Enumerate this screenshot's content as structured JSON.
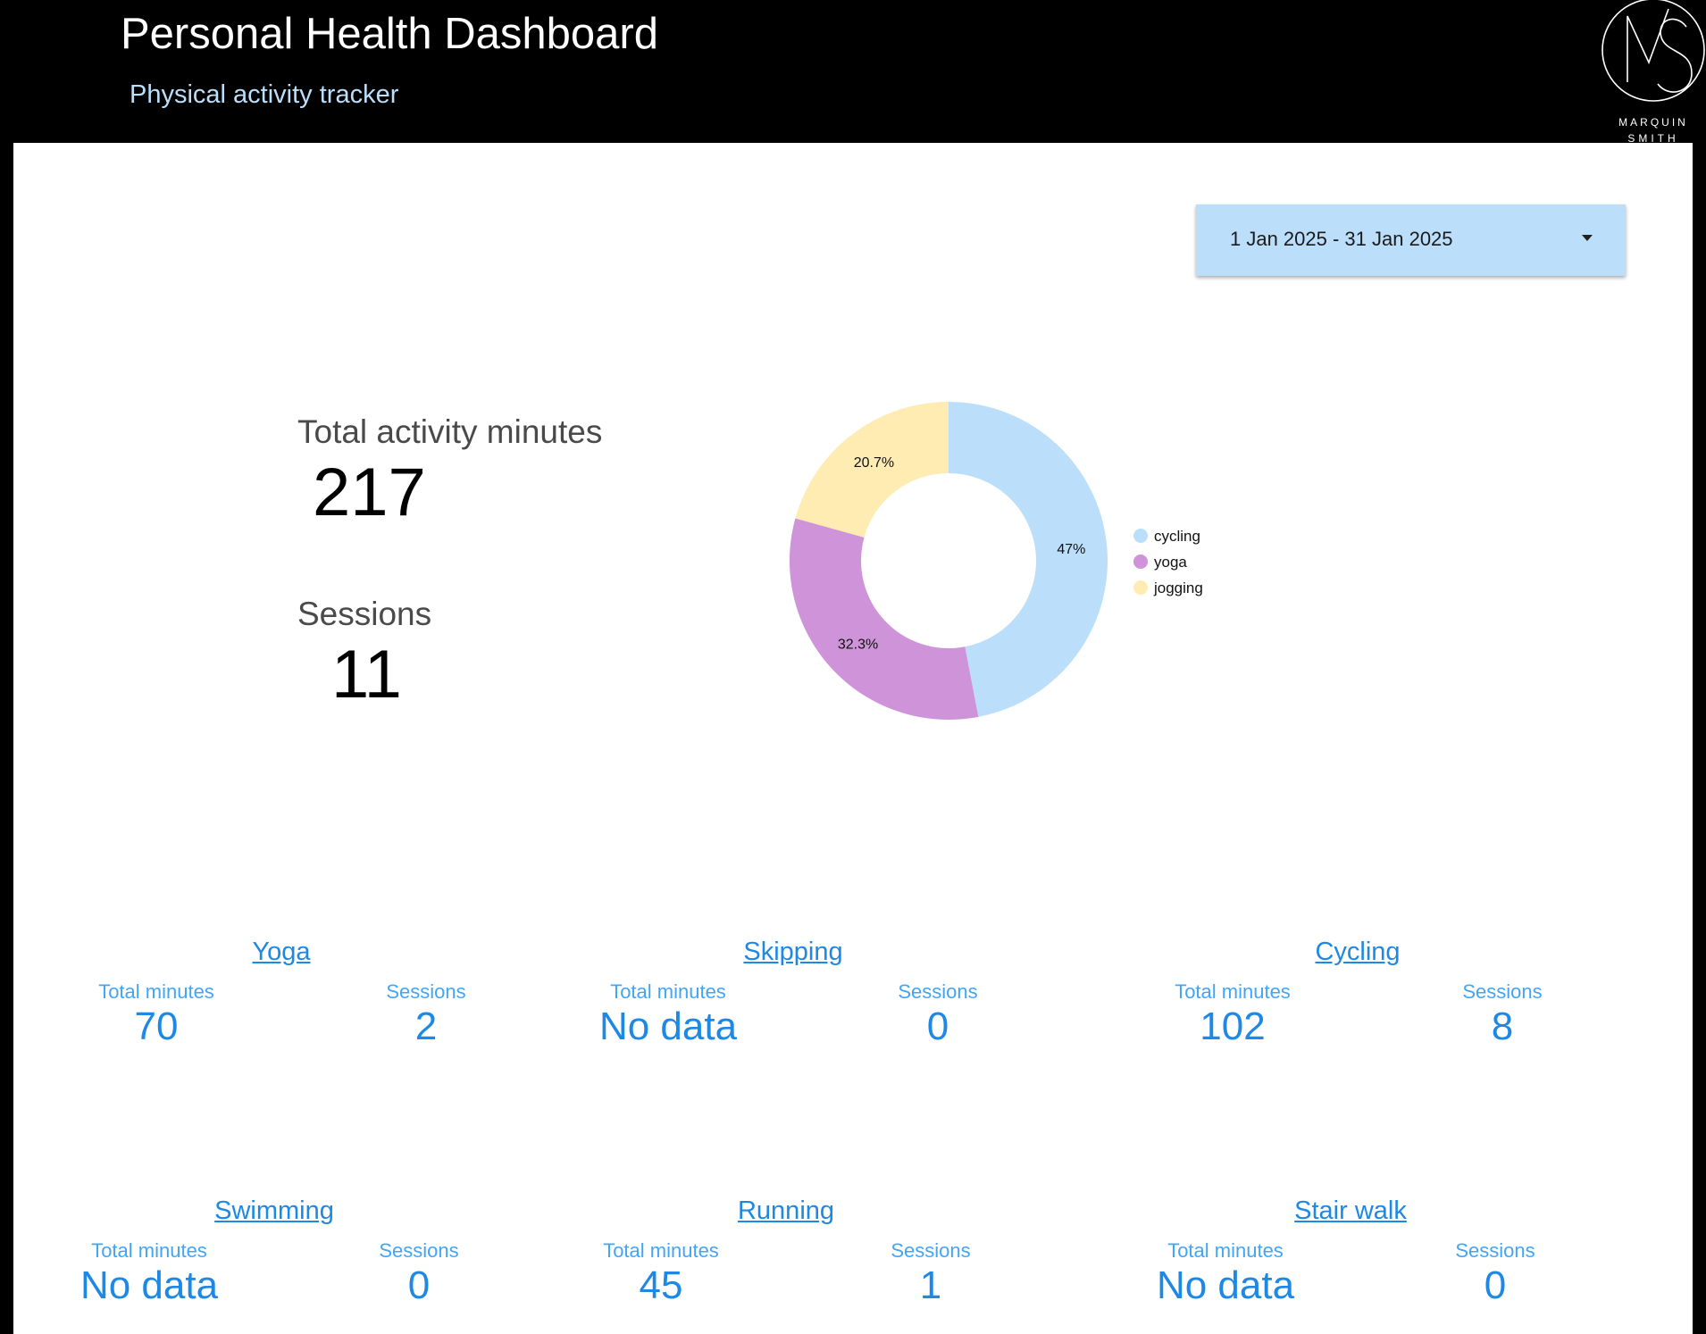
{
  "header": {
    "title": "Personal Health Dashboard",
    "subtitle": "Physical activity tracker",
    "logo": {
      "monogram": "MS",
      "line1": "MARQUIN",
      "line2": "SMITH"
    }
  },
  "date_filter": {
    "label": "1 Jan 2025 - 31 Jan 2025",
    "icon": "dropdown-arrow-icon"
  },
  "kpis": {
    "total_minutes_label": "Total activity minutes",
    "total_minutes_value": "217",
    "sessions_label": "Sessions",
    "sessions_value": "11"
  },
  "chart_data": {
    "type": "pie",
    "donut": true,
    "legend_position": "right",
    "slices": [
      {
        "label": "cycling",
        "percent": 47,
        "display": "47%",
        "color": "#bbdefb"
      },
      {
        "label": "yoga",
        "percent": 32.3,
        "display": "32.3%",
        "color": "#ce93d8"
      },
      {
        "label": "jogging",
        "percent": 20.7,
        "display": "20.7%",
        "color": "#ffecb3"
      }
    ]
  },
  "activities": [
    {
      "name": "Yoga",
      "minutes_label": "Total minutes",
      "minutes": "70",
      "sessions_label": "Sessions",
      "sessions": "2"
    },
    {
      "name": "Skipping",
      "minutes_label": "Total minutes",
      "minutes": "No data",
      "sessions_label": "Sessions",
      "sessions": "0"
    },
    {
      "name": "Cycling",
      "minutes_label": "Total minutes",
      "minutes": "102",
      "sessions_label": "Sessions",
      "sessions": "8"
    },
    {
      "name": "Swimming",
      "minutes_label": "Total minutes",
      "minutes": "No data",
      "sessions_label": "Sessions",
      "sessions": "0"
    },
    {
      "name": "Running",
      "minutes_label": "Total minutes",
      "minutes": "45",
      "sessions_label": "Sessions",
      "sessions": "1"
    },
    {
      "name": "Stair walk",
      "minutes_label": "Total minutes",
      "minutes": "No data",
      "sessions_label": "Sessions",
      "sessions": "0"
    }
  ]
}
